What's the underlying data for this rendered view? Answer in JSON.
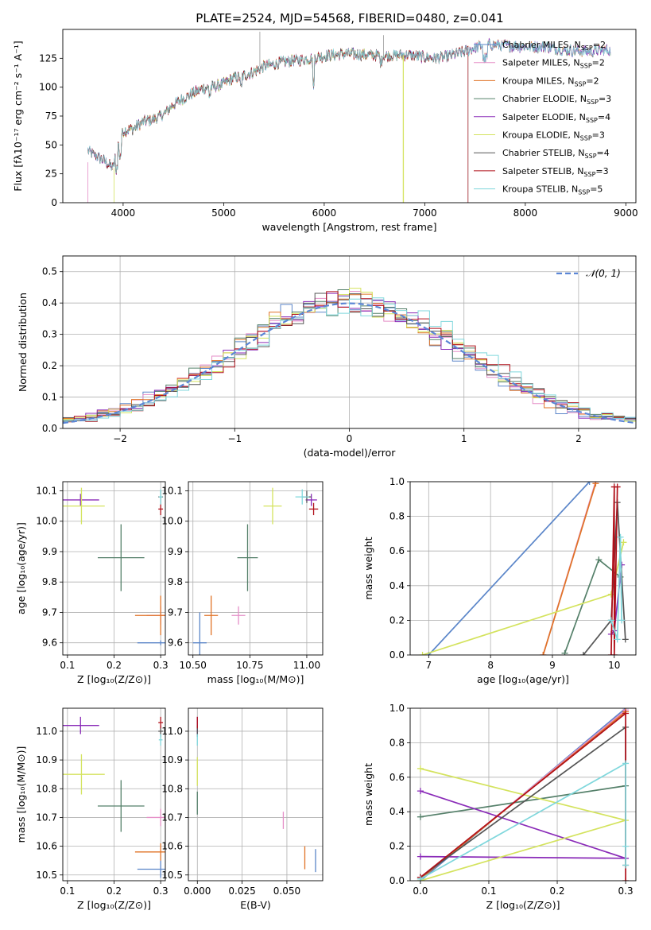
{
  "figure": {
    "title": "PLATE=2524, MJD=54568, FIBERID=0480, z=0.041"
  },
  "colors": {
    "Chabrier MILES": "#5b86c9",
    "Salpeter MILES": "#e58fc8",
    "Kroupa MILES": "#e07326",
    "Chabrier ELODIE": "#55806a",
    "Salpeter ELODIE": "#8a2bb8",
    "Kroupa ELODIE": "#d4e35e",
    "Chabrier STELIB": "#555555",
    "Salpeter STELIB": "#b0101a",
    "Kroupa STELIB": "#7fd7dc",
    "normal": "#5b86d6",
    "grid": "#b0b0b0"
  },
  "chart_data": [
    {
      "id": "spectrum",
      "type": "line",
      "title": "PLATE=2524, MJD=54568, FIBERID=0480, z=0.041",
      "xlabel": "wavelength [Angstrom, rest frame]",
      "ylabel": "Flux [fλ10⁻¹⁷ erg cm⁻² s⁻¹ A⁻¹]",
      "xlim": [
        3400,
        9100
      ],
      "ylim": [
        0,
        150
      ],
      "xticks": [
        4000,
        5000,
        6000,
        7000,
        8000,
        9000
      ],
      "yticks": [
        0,
        25,
        50,
        75,
        100,
        125
      ],
      "grid": false,
      "legend": "top-right",
      "series": [
        {
          "name": "Chabrier MILES, N_SSP=2"
        },
        {
          "name": "Salpeter MILES, N_SSP=2"
        },
        {
          "name": "Kroupa MILES, N_SSP=2"
        },
        {
          "name": "Chabrier ELODIE, N_SSP=3"
        },
        {
          "name": "Salpeter ELODIE, N_SSP=4"
        },
        {
          "name": "Kroupa ELODIE, N_SSP=3"
        },
        {
          "name": "Chabrier STELIB, N_SSP=4"
        },
        {
          "name": "Salpeter STELIB, N_SSP=3"
        },
        {
          "name": "Kroupa STELIB, N_SSP=5"
        }
      ],
      "continuum": {
        "x": [
          3650,
          3700,
          3800,
          3900,
          3950,
          4000,
          4100,
          4200,
          4300,
          4400,
          4500,
          4600,
          4700,
          4800,
          4900,
          5000,
          5100,
          5200,
          5300,
          5400,
          5500,
          5600,
          5800,
          6000,
          6200,
          6400,
          6600,
          6800,
          7000,
          7100,
          7200,
          7400,
          7600,
          7800,
          8000,
          8200,
          8400,
          8600,
          8800
        ],
        "y": [
          45,
          42,
          37,
          30,
          50,
          62,
          64,
          70,
          72,
          76,
          85,
          90,
          95,
          99,
          100,
          103,
          108,
          110,
          113,
          118,
          120,
          122,
          124,
          127,
          129,
          128,
          127,
          128,
          126,
          125,
          126,
          131,
          137,
          136,
          135,
          135,
          132,
          131,
          132
        ]
      },
      "cutoffs": [
        {
          "series": "Kroupa ELODIE, N_SSP=3",
          "x": 3910,
          "end": 3910
        },
        {
          "series": "Kroupa ELODIE, N_SSP=3",
          "x": 6780,
          "end": 6790
        },
        {
          "series": "Salpeter STELIB, N_SSP=3",
          "x": 7420,
          "end": 7430
        },
        {
          "series": "Chabrier STELIB, N_SSP=4",
          "x": 7420,
          "end": 7430
        },
        {
          "series": "Salpeter MILES, N_SSP=2",
          "x": 3650,
          "end": 3650
        }
      ]
    },
    {
      "id": "residuals",
      "type": "histogram",
      "xlabel": "(data-model)/error",
      "ylabel": "Normed distribution",
      "xlim": [
        -2.5,
        2.5
      ],
      "ylim": [
        0,
        0.55
      ],
      "xticks": [
        -2,
        -1,
        0,
        1,
        2
      ],
      "yticks": [
        0.0,
        0.1,
        0.2,
        0.3,
        0.4,
        0.5
      ],
      "grid": true,
      "legend": "top-right",
      "normal_label": "𝒩(0, 1)",
      "bin_width": 0.1
    },
    {
      "id": "age-vs-Z",
      "type": "scatter",
      "xlabel": "Z [log₁₀(Z/Z⊙)]",
      "ylabel": "age  [log₁₀(age/yr)]",
      "xlim": [
        0.09,
        0.31
      ],
      "ylim": [
        9.56,
        10.13
      ],
      "xticks": [
        0.1,
        0.2,
        0.3
      ],
      "yticks": [
        9.6,
        9.7,
        9.8,
        9.9,
        10.0,
        10.1
      ],
      "grid": true,
      "points": [
        {
          "series": "Chabrier MILES",
          "x": 0.3,
          "y": 9.6,
          "xerr": 0.05,
          "yerr": 0.0
        },
        {
          "series": "Salpeter MILES",
          "x": 0.3,
          "y": 9.69,
          "xerr": 0.03,
          "yerr": 0.03
        },
        {
          "series": "Kroupa MILES",
          "x": 0.3,
          "y": 9.69,
          "xerr": 0.055,
          "yerr": 0.065
        },
        {
          "series": "Chabrier ELODIE",
          "x": 0.215,
          "y": 9.88,
          "xerr": 0.05,
          "yerr": 0.11
        },
        {
          "series": "Salpeter ELODIE",
          "x": 0.128,
          "y": 10.07,
          "xerr": 0.04,
          "yerr": 0.02
        },
        {
          "series": "Kroupa ELODIE",
          "x": 0.13,
          "y": 10.05,
          "xerr": 0.05,
          "yerr": 0.06
        },
        {
          "series": "Chabrier STELIB",
          "x": 0.3,
          "y": 10.08,
          "xerr": 0.005,
          "yerr": 0.02
        },
        {
          "series": "Salpeter STELIB",
          "x": 0.3,
          "y": 10.04,
          "xerr": 0.005,
          "yerr": 0.02
        },
        {
          "series": "Kroupa STELIB",
          "x": 0.3,
          "y": 10.08,
          "xerr": 0.004,
          "yerr": 0.025
        }
      ]
    },
    {
      "id": "age-vs-mass",
      "type": "scatter",
      "xlabel": "mass [log₁₀(M/M⊙)]",
      "ylabel": "",
      "xlim": [
        10.48,
        11.07
      ],
      "ylim": [
        9.56,
        10.13
      ],
      "xticks": [
        10.5,
        10.75,
        11.0
      ],
      "yticks": [
        9.6,
        9.7,
        9.8,
        9.9,
        10.0,
        10.1
      ],
      "grid": true,
      "points": [
        {
          "series": "Chabrier MILES",
          "x": 10.53,
          "y": 9.6,
          "xerr": 0.03,
          "yerr": 0.1
        },
        {
          "series": "Salpeter MILES",
          "x": 10.7,
          "y": 9.69,
          "xerr": 0.03,
          "yerr": 0.03
        },
        {
          "series": "Kroupa MILES",
          "x": 10.58,
          "y": 9.69,
          "xerr": 0.03,
          "yerr": 0.065
        },
        {
          "series": "Chabrier ELODIE",
          "x": 10.74,
          "y": 9.88,
          "xerr": 0.045,
          "yerr": 0.11
        },
        {
          "series": "Salpeter ELODIE",
          "x": 11.02,
          "y": 10.07,
          "xerr": 0.025,
          "yerr": 0.02
        },
        {
          "series": "Kroupa ELODIE",
          "x": 10.85,
          "y": 10.05,
          "xerr": 0.04,
          "yerr": 0.06
        },
        {
          "series": "Chabrier STELIB",
          "x": 11.0,
          "y": 10.08,
          "xerr": 0.02,
          "yerr": 0.02
        },
        {
          "series": "Salpeter STELIB",
          "x": 11.03,
          "y": 10.04,
          "xerr": 0.02,
          "yerr": 0.02
        },
        {
          "series": "Kroupa STELIB",
          "x": 10.98,
          "y": 10.08,
          "xerr": 0.03,
          "yerr": 0.025
        }
      ]
    },
    {
      "id": "weight-vs-age",
      "type": "line",
      "xlabel": "age  [log₁₀(age/yr)]",
      "ylabel": "mass weight",
      "xlim": [
        6.7,
        10.35
      ],
      "ylim": [
        0,
        1.0
      ],
      "xticks": [
        7,
        8,
        9,
        10
      ],
      "yticks": [
        0.0,
        0.2,
        0.4,
        0.6,
        0.8,
        1.0
      ],
      "grid": true,
      "series": [
        {
          "series": "Chabrier MILES",
          "x": [
            7.0,
            9.6
          ],
          "y": [
            0.0,
            1.0
          ]
        },
        {
          "series": "Salpeter MILES",
          "x": [
            8.85,
            9.7
          ],
          "y": [
            0.0,
            1.0
          ]
        },
        {
          "series": "Kroupa MILES",
          "x": [
            8.85,
            9.7
          ],
          "y": [
            0.0,
            0.99
          ]
        },
        {
          "series": "Chabrier ELODIE",
          "x": [
            9.2,
            9.75,
            10.1
          ],
          "y": [
            0.01,
            0.55,
            0.45
          ]
        },
        {
          "series": "Salpeter ELODIE",
          "x": [
            9.95,
            10.0,
            10.12
          ],
          "y": [
            0.12,
            0.14,
            0.52
          ]
        },
        {
          "series": "Kroupa ELODIE",
          "x": [
            6.9,
            9.95,
            10.15
          ],
          "y": [
            0.0,
            0.35,
            0.65
          ]
        },
        {
          "series": "Chabrier STELIB",
          "x": [
            9.5,
            9.95,
            10.05,
            10.18
          ],
          "y": [
            0.0,
            0.2,
            0.88,
            0.09
          ]
        },
        {
          "series": "Salpeter STELIB",
          "x": [
            9.95,
            10.0,
            10.0,
            10.05
          ],
          "y": [
            0.0,
            0.97,
            0.0,
            0.97
          ]
        },
        {
          "series": "Kroupa STELIB",
          "x": [
            9.95,
            10.05,
            10.1,
            10.12
          ],
          "y": [
            0.2,
            0.09,
            0.68,
            0.2
          ]
        }
      ]
    },
    {
      "id": "mass-vs-Z",
      "type": "scatter",
      "xlabel": "Z [log₁₀(Z/Z⊙)]",
      "ylabel": "mass [log₁₀(M/M⊙)]",
      "xlim": [
        0.09,
        0.31
      ],
      "ylim": [
        10.48,
        11.08
      ],
      "xticks": [
        0.1,
        0.2,
        0.3
      ],
      "yticks": [
        10.5,
        10.6,
        10.7,
        10.8,
        10.9,
        11.0
      ],
      "grid": true,
      "points": [
        {
          "series": "Chabrier MILES",
          "x": 0.3,
          "y": 10.52,
          "xerr": 0.05,
          "yerr": 0.03
        },
        {
          "series": "Salpeter MILES",
          "x": 0.3,
          "y": 10.7,
          "xerr": 0.03,
          "yerr": 0.03
        },
        {
          "series": "Kroupa MILES",
          "x": 0.3,
          "y": 10.58,
          "xerr": 0.055,
          "yerr": 0.03
        },
        {
          "series": "Chabrier ELODIE",
          "x": 0.215,
          "y": 10.74,
          "xerr": 0.05,
          "yerr": 0.09
        },
        {
          "series": "Salpeter ELODIE",
          "x": 0.128,
          "y": 11.02,
          "xerr": 0.04,
          "yerr": 0.03
        },
        {
          "series": "Kroupa ELODIE",
          "x": 0.13,
          "y": 10.85,
          "xerr": 0.05,
          "yerr": 0.07
        },
        {
          "series": "Chabrier STELIB",
          "x": 0.3,
          "y": 11.0,
          "xerr": 0.005,
          "yerr": 0.02
        },
        {
          "series": "Salpeter STELIB",
          "x": 0.3,
          "y": 11.03,
          "xerr": 0.005,
          "yerr": 0.02
        },
        {
          "series": "Kroupa STELIB",
          "x": 0.3,
          "y": 10.97,
          "xerr": 0.004,
          "yerr": 0.02
        }
      ]
    },
    {
      "id": "mass-vs-ebv",
      "type": "scatter",
      "xlabel": "E(B-V)",
      "ylabel": "",
      "xlim": [
        -0.005,
        0.07
      ],
      "ylim": [
        10.48,
        11.08
      ],
      "xticks": [
        0.0,
        0.025,
        0.05
      ],
      "yticks": [
        10.5,
        10.6,
        10.7,
        10.8,
        10.9,
        11.0
      ],
      "grid": true,
      "points": [
        {
          "series": "Chabrier MILES",
          "x": 0.066,
          "y": 10.55,
          "xerr": 0.0,
          "yerr": 0.04
        },
        {
          "series": "Salpeter MILES",
          "x": 0.048,
          "y": 10.69,
          "xerr": 0.0,
          "yerr": 0.03
        },
        {
          "series": "Kroupa MILES",
          "x": 0.06,
          "y": 10.56,
          "xerr": 0.0,
          "yerr": 0.04
        },
        {
          "series": "Chabrier ELODIE",
          "x": 0.0,
          "y": 10.75,
          "xerr": 0.0,
          "yerr": 0.04
        },
        {
          "series": "Salpeter ELODIE",
          "x": 0.0,
          "y": 11.02,
          "xerr": 0.0,
          "yerr": 0.03
        },
        {
          "series": "Kroupa ELODIE",
          "x": 0.0,
          "y": 10.86,
          "xerr": 0.0,
          "yerr": 0.05
        },
        {
          "series": "Chabrier STELIB",
          "x": 0.0,
          "y": 11.0,
          "xerr": 0.0,
          "yerr": 0.02
        },
        {
          "series": "Salpeter STELIB",
          "x": 0.0,
          "y": 11.03,
          "xerr": 0.0,
          "yerr": 0.02
        },
        {
          "series": "Kroupa STELIB",
          "x": 0.0,
          "y": 10.97,
          "xerr": 0.0,
          "yerr": 0.02
        }
      ]
    },
    {
      "id": "weight-vs-Z",
      "type": "line",
      "xlabel": "Z [log₁₀(Z/Z⊙)]",
      "ylabel": "mass weight",
      "xlim": [
        -0.015,
        0.315
      ],
      "ylim": [
        0,
        1.0
      ],
      "xticks": [
        0.0,
        0.1,
        0.2,
        0.3
      ],
      "yticks": [
        0.0,
        0.2,
        0.4,
        0.6,
        0.8,
        1.0
      ],
      "grid": true,
      "series": [
        {
          "series": "Chabrier MILES",
          "x": [
            0.0,
            0.3
          ],
          "y": [
            0.0,
            1.0
          ]
        },
        {
          "series": "Salpeter MILES",
          "x": [
            0.0,
            0.3
          ],
          "y": [
            0.01,
            0.99
          ]
        },
        {
          "series": "Kroupa MILES",
          "x": [
            0.0,
            0.3
          ],
          "y": [
            0.01,
            0.98
          ]
        },
        {
          "series": "Chabrier ELODIE",
          "x": [
            0.0,
            0.3
          ],
          "y": [
            0.37,
            0.55
          ]
        },
        {
          "series": "Salpeter ELODIE",
          "x": [
            0.0,
            0.3,
            0.0
          ],
          "y": [
            0.14,
            0.13,
            0.52
          ]
        },
        {
          "series": "Kroupa ELODIE",
          "x": [
            0.0,
            0.3,
            0.0
          ],
          "y": [
            0.0,
            0.35,
            0.65
          ]
        },
        {
          "series": "Chabrier STELIB",
          "x": [
            0.0,
            0.3,
            0.3
          ],
          "y": [
            0.02,
            0.89,
            0.09
          ]
        },
        {
          "series": "Salpeter STELIB",
          "x": [
            0.0,
            0.3,
            0.3
          ],
          "y": [
            0.02,
            0.97,
            0.0
          ]
        },
        {
          "series": "Kroupa STELIB",
          "x": [
            0.0,
            0.3,
            0.3,
            0.3
          ],
          "y": [
            0.01,
            0.68,
            0.2,
            0.09
          ]
        }
      ]
    }
  ]
}
